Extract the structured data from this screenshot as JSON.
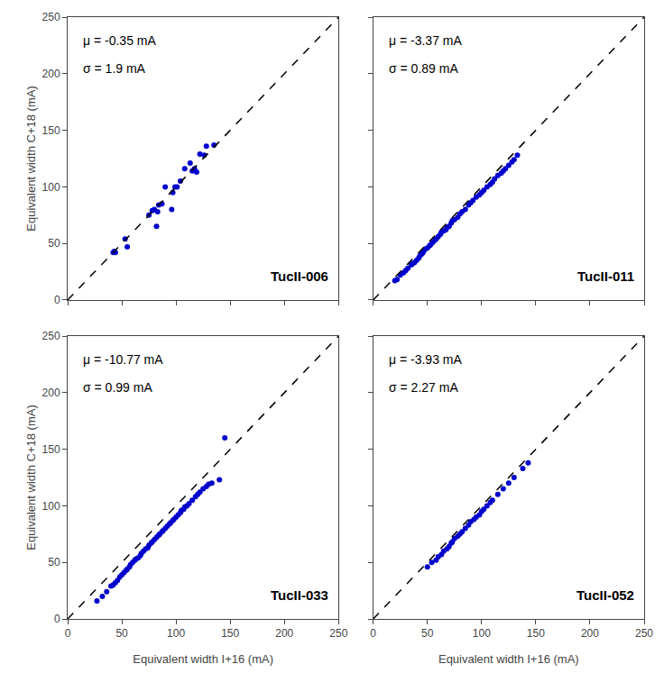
{
  "chart_data": [
    {
      "type": "scatter",
      "annotations": [
        "μ = -0.35 mA",
        "σ = 1.9 mA",
        "TucII-006"
      ],
      "ylabel": "Equivalent width C+18 (mA)",
      "series": [
        {
          "type": "scatter",
          "color": "#0000cc",
          "x": [
            42,
            43,
            44,
            53,
            55,
            75,
            78,
            80,
            82,
            83,
            84,
            87,
            90,
            96,
            97,
            99,
            101,
            104,
            108,
            113,
            115,
            117,
            119,
            122,
            126,
            128,
            135
          ],
          "values": [
            42,
            43,
            42,
            54,
            47,
            75,
            79,
            80,
            65,
            78,
            84,
            85,
            100,
            80,
            95,
            100,
            100,
            105,
            116,
            121,
            114,
            116,
            113,
            129,
            128,
            136,
            137
          ]
        },
        {
          "type": "line",
          "line_style": "dashed",
          "color": "#000000",
          "x": [
            0,
            250
          ],
          "values": [
            0,
            250
          ]
        }
      ],
      "xlim": [
        0,
        250
      ],
      "ylim": [
        0,
        250
      ],
      "xticks": [
        0,
        50,
        100,
        150,
        200,
        250
      ],
      "yticks": [
        0,
        50,
        100,
        150,
        200,
        250
      ],
      "grid": false,
      "tick_labels": "y"
    },
    {
      "type": "scatter",
      "annotations": [
        "μ = -3.37 mA",
        "σ = 0.89 mA",
        "TucII-011"
      ],
      "series": [
        {
          "type": "scatter",
          "color": "#0000cc",
          "x": [
            20,
            22,
            25,
            28,
            30,
            32,
            35,
            36,
            38,
            40,
            42,
            43,
            44,
            45,
            46,
            47,
            48,
            50,
            52,
            53,
            55,
            57,
            58,
            60,
            62,
            63,
            65,
            67,
            68,
            70,
            72,
            73,
            75,
            78,
            80,
            82,
            85,
            88,
            90,
            92,
            95,
            98,
            100,
            102,
            105,
            108,
            110,
            112,
            115,
            118,
            120,
            122,
            125,
            128,
            130,
            133
          ],
          "values": [
            17,
            18,
            22,
            24,
            26,
            28,
            31,
            32,
            33,
            35,
            37,
            39,
            40,
            41,
            42,
            44,
            45,
            46,
            48,
            49,
            51,
            53,
            54,
            56,
            58,
            60,
            61,
            62,
            64,
            65,
            68,
            70,
            71,
            73,
            76,
            78,
            80,
            84,
            86,
            88,
            91,
            93,
            95,
            97,
            100,
            102,
            104,
            107,
            110,
            112,
            114,
            116,
            119,
            122,
            124,
            128
          ]
        },
        {
          "type": "line",
          "line_style": "dashed",
          "color": "#000000",
          "x": [
            0,
            250
          ],
          "values": [
            0,
            250
          ]
        }
      ],
      "xlim": [
        0,
        250
      ],
      "ylim": [
        0,
        250
      ],
      "xticks": [
        0,
        50,
        100,
        150,
        200,
        250
      ],
      "yticks": [
        0,
        50,
        100,
        150,
        200,
        250
      ],
      "grid": false,
      "tick_labels": false
    },
    {
      "type": "scatter",
      "annotations": [
        "μ = -10.77 mA",
        "σ = 0.99 mA",
        "TucII-033"
      ],
      "xlabel": "Equivalent width I+16 (mA)",
      "ylabel": "Equivalent width C+18 (mA)",
      "series": [
        {
          "type": "scatter",
          "color": "#0000cc",
          "x": [
            27,
            32,
            36,
            40,
            42,
            44,
            46,
            48,
            50,
            52,
            54,
            55,
            57,
            58,
            60,
            62,
            63,
            65,
            67,
            68,
            70,
            72,
            74,
            75,
            77,
            78,
            80,
            82,
            84,
            85,
            87,
            88,
            90,
            92,
            94,
            95,
            97,
            98,
            100,
            102,
            104,
            105,
            107,
            108,
            110,
            112,
            115,
            118,
            120,
            122,
            125,
            128,
            130,
            133,
            140,
            145
          ],
          "values": [
            16,
            20,
            24,
            29,
            30,
            32,
            34,
            37,
            39,
            41,
            43,
            44,
            46,
            48,
            50,
            52,
            53,
            54,
            56,
            58,
            60,
            62,
            63,
            65,
            67,
            68,
            70,
            72,
            74,
            75,
            77,
            78,
            80,
            82,
            84,
            85,
            87,
            88,
            90,
            92,
            94,
            96,
            97,
            99,
            100,
            102,
            105,
            108,
            110,
            112,
            115,
            117,
            119,
            120,
            123,
            160
          ]
        },
        {
          "type": "line",
          "line_style": "dashed",
          "color": "#000000",
          "x": [
            0,
            250
          ],
          "values": [
            0,
            250
          ]
        }
      ],
      "xlim": [
        0,
        250
      ],
      "ylim": [
        0,
        250
      ],
      "xticks": [
        0,
        50,
        100,
        150,
        200,
        250
      ],
      "yticks": [
        0,
        50,
        100,
        150,
        200,
        250
      ],
      "grid": false
    },
    {
      "type": "scatter",
      "annotations": [
        "μ = -3.93 mA",
        "σ = 2.27 mA",
        "TucII-052"
      ],
      "xlabel": "Equivalent width I+16 (mA)",
      "series": [
        {
          "type": "scatter",
          "color": "#0000cc",
          "x": [
            50,
            54,
            58,
            60,
            63,
            65,
            68,
            70,
            72,
            73,
            75,
            78,
            80,
            82,
            85,
            88,
            90,
            93,
            95,
            98,
            100,
            102,
            105,
            108,
            110,
            115,
            120,
            125,
            130,
            138,
            143
          ],
          "values": [
            46,
            50,
            52,
            55,
            57,
            60,
            62,
            64,
            67,
            68,
            71,
            73,
            75,
            77,
            80,
            83,
            86,
            88,
            90,
            92,
            95,
            97,
            100,
            103,
            105,
            110,
            115,
            120,
            125,
            133,
            138
          ]
        },
        {
          "type": "line",
          "line_style": "dashed",
          "color": "#000000",
          "x": [
            0,
            250
          ],
          "values": [
            0,
            250
          ]
        }
      ],
      "xlim": [
        0,
        250
      ],
      "ylim": [
        0,
        250
      ],
      "xticks": [
        0,
        50,
        100,
        150,
        200,
        250
      ],
      "yticks": [
        0,
        50,
        100,
        150,
        200,
        250
      ],
      "grid": false,
      "tick_labels": "x"
    }
  ]
}
